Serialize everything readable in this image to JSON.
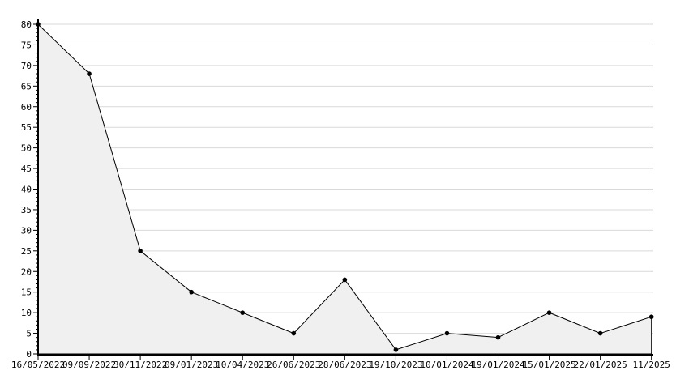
{
  "chart_data": {
    "type": "area",
    "title": "",
    "xlabel": "",
    "ylabel": "",
    "categories": [
      "16/05/2022",
      "09/09/2022",
      "30/11/2022",
      "09/01/2023",
      "10/04/2023",
      "26/06/2023",
      "28/06/2023",
      "19/10/2023",
      "10/01/2024",
      "19/01/2024",
      "15/01/2025",
      "22/01/2025",
      "11/2025"
    ],
    "values": [
      80,
      68,
      25,
      15,
      10,
      5,
      18,
      1,
      5,
      4,
      10,
      5,
      9
    ],
    "ylim": [
      0,
      80
    ],
    "ytick_step": 5,
    "y_minor_step": 1,
    "grid": true,
    "legend": "none",
    "colors": {
      "line": "#000000",
      "marker": "#000000",
      "area_fill": "#f0f0f0",
      "grid": "#d9d9d9",
      "axis": "#000000",
      "text": "#000000",
      "background": "#ffffff"
    }
  }
}
